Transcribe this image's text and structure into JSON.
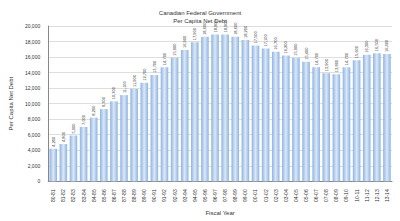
{
  "chart_data": {
    "type": "bar",
    "title": "Canadian Federal Government\nPer Capita Net Debt",
    "x_label": "Fiscal Year",
    "y_label": "Per Capita Net Debt",
    "categories": [
      "80-81",
      "81-82",
      "82-83",
      "83-84",
      "84-85",
      "85-86",
      "86-87",
      "87-88",
      "88-89",
      "89-90",
      "90-91",
      "91-92",
      "92-93",
      "93-94",
      "94-95",
      "95-96",
      "96-97",
      "97-98",
      "98-99",
      "99-00",
      "00-01",
      "01-02",
      "02-03",
      "03-04",
      "04-05",
      "05-06",
      "06-07",
      "07-08",
      "08-09",
      "09-10",
      "10-11",
      "11-12",
      "12-13",
      "13-14"
    ],
    "values": [
      4200,
      4800,
      5900,
      7000,
      8200,
      9300,
      10300,
      11100,
      11900,
      12700,
      13700,
      14700,
      15900,
      16900,
      17900,
      18600,
      18900,
      18900,
      18600,
      18200,
      17500,
      17100,
      16700,
      16200,
      15900,
      15400,
      14700,
      13900,
      13800,
      14700,
      15600,
      16300,
      16500,
      16400
    ],
    "value_labels": [
      "4,200",
      "4,800",
      "5,900",
      "7,000",
      "8,200",
      "9,300",
      "10,300",
      "11,100",
      "11,900",
      "12,700",
      "13,700",
      "14,700",
      "15,900",
      "16,900",
      "17,900",
      "18,600",
      "18,900",
      "18,900",
      "18,600",
      "18,200",
      "17,500",
      "17,100",
      "16,700",
      "16,200",
      "15,900",
      "15,400",
      "14,700",
      "13,900",
      "13,800",
      "14,700",
      "15,600",
      "16,300",
      "16,500",
      "16,400"
    ],
    "data_labels": true,
    "color": "#8db3e2",
    "ylim": [
      0,
      20000
    ],
    "yticks": [
      0,
      2000,
      4000,
      6000,
      8000,
      10000,
      12000,
      14000,
      16000,
      18000,
      20000
    ],
    "grid": true
  }
}
